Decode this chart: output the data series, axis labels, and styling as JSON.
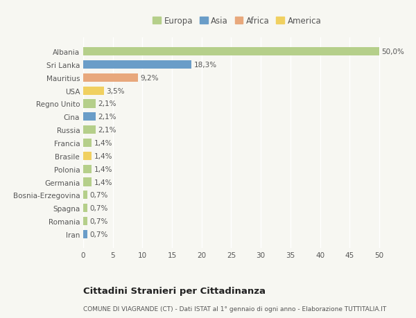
{
  "countries": [
    "Albania",
    "Sri Lanka",
    "Mauritius",
    "USA",
    "Regno Unito",
    "Cina",
    "Russia",
    "Francia",
    "Brasile",
    "Polonia",
    "Germania",
    "Bosnia-Erzegovina",
    "Spagna",
    "Romania",
    "Iran"
  ],
  "values": [
    50.0,
    18.3,
    9.2,
    3.5,
    2.1,
    2.1,
    2.1,
    1.4,
    1.4,
    1.4,
    1.4,
    0.7,
    0.7,
    0.7,
    0.7
  ],
  "labels": [
    "50,0%",
    "18,3%",
    "9,2%",
    "3,5%",
    "2,1%",
    "2,1%",
    "2,1%",
    "1,4%",
    "1,4%",
    "1,4%",
    "1,4%",
    "0,7%",
    "0,7%",
    "0,7%",
    "0,7%"
  ],
  "continents": [
    "Europa",
    "Asia",
    "Africa",
    "America",
    "Europa",
    "Asia",
    "Europa",
    "Europa",
    "America",
    "Europa",
    "Europa",
    "Europa",
    "Europa",
    "Europa",
    "Asia"
  ],
  "colors": {
    "Europa": "#b5cf8a",
    "Asia": "#6a9dc8",
    "Africa": "#e8a87c",
    "America": "#f0d060"
  },
  "legend_labels": [
    "Europa",
    "Asia",
    "Africa",
    "America"
  ],
  "legend_colors": [
    "#b5cf8a",
    "#6a9dc8",
    "#e8a87c",
    "#f0d060"
  ],
  "title1": "Cittadini Stranieri per Cittadinanza",
  "title2": "COMUNE DI VIAGRANDE (CT) - Dati ISTAT al 1° gennaio di ogni anno - Elaborazione TUTTITALIA.IT",
  "xlim": [
    0,
    52
  ],
  "xticks": [
    0,
    5,
    10,
    15,
    20,
    25,
    30,
    35,
    40,
    45,
    50
  ],
  "background_color": "#f7f7f2",
  "bar_height": 0.65,
  "grid_color": "#ffffff",
  "label_fontsize": 7.5,
  "tick_fontsize": 7.5,
  "legend_fontsize": 8.5
}
